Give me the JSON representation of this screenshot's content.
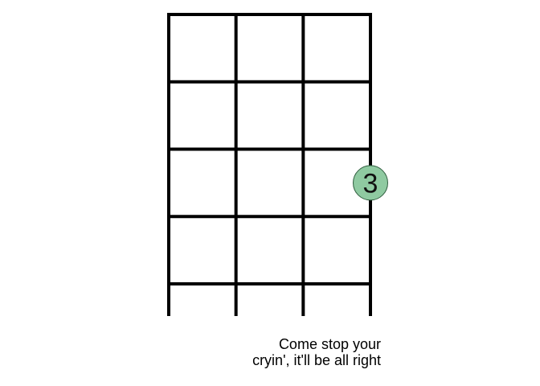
{
  "diagram": {
    "strings": 4,
    "frets": 5,
    "nut_visible": true,
    "line_color": "#000000",
    "dot_fill": "#8fcaa1",
    "dot_stroke": "#2f5d3e",
    "fingers": [
      {
        "string": 4,
        "fret": 3,
        "label": "3"
      }
    ]
  },
  "lyric": {
    "text": "Come stop your cryin', it'll be all right"
  }
}
